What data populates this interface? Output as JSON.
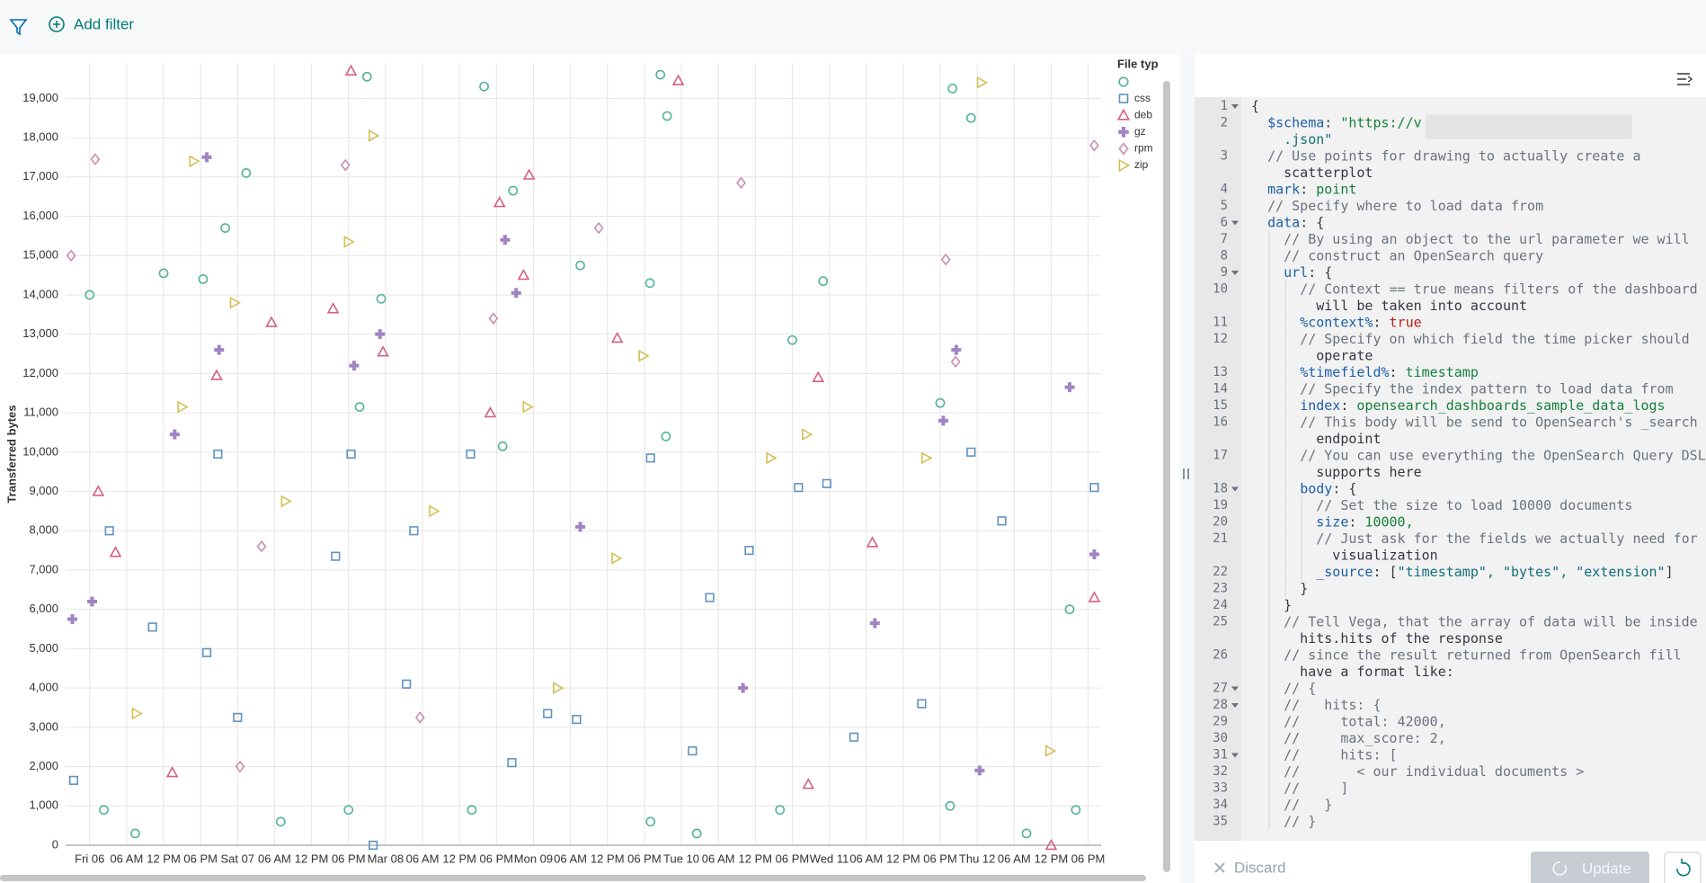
{
  "toolbar": {
    "add_filter": "Add filter"
  },
  "chart_data": {
    "type": "scatter",
    "y_label": "Transferred bytes",
    "legend_title": "File typ",
    "grid": true,
    "xlim": [
      -3.9,
      164.1
    ],
    "xticks": [
      {
        "value": 0,
        "label": "Fri 06"
      },
      {
        "value": 6,
        "label": "06 AM"
      },
      {
        "value": 12,
        "label": "12 PM"
      },
      {
        "value": 18,
        "label": "06 PM"
      },
      {
        "value": 24,
        "label": "Sat 07"
      },
      {
        "value": 30,
        "label": "06 AM"
      },
      {
        "value": 36,
        "label": "12 PM"
      },
      {
        "value": 42,
        "label": "06 PM"
      },
      {
        "value": 48,
        "label": "Mar 08"
      },
      {
        "value": 54,
        "label": "06 AM"
      },
      {
        "value": 60,
        "label": "12 PM"
      },
      {
        "value": 66,
        "label": "06 PM"
      },
      {
        "value": 72,
        "label": "Mon 09"
      },
      {
        "value": 78,
        "label": "06 AM"
      },
      {
        "value": 84,
        "label": "12 PM"
      },
      {
        "value": 90,
        "label": "06 PM"
      },
      {
        "value": 96,
        "label": "Tue 10"
      },
      {
        "value": 102,
        "label": "06 AM"
      },
      {
        "value": 108,
        "label": "12 PM"
      },
      {
        "value": 114,
        "label": "06 PM"
      },
      {
        "value": 120,
        "label": "Wed 11"
      },
      {
        "value": 126,
        "label": "06 AM"
      },
      {
        "value": 132,
        "label": "12 PM"
      },
      {
        "value": 138,
        "label": "06 PM"
      },
      {
        "value": 144,
        "label": "Thu 12"
      },
      {
        "value": 150,
        "label": "06 AM"
      },
      {
        "value": 156,
        "label": "12 PM"
      },
      {
        "value": 162,
        "label": "06 PM"
      }
    ],
    "ylim": [
      0,
      19900
    ],
    "yticks": [
      0,
      {
        "value": 1000,
        "label": "1,000"
      },
      {
        "value": 2000,
        "label": "2,000"
      },
      {
        "value": 3000,
        "label": "3,000"
      },
      {
        "value": 4000,
        "label": "4,000"
      },
      {
        "value": 5000,
        "label": "5,000"
      },
      {
        "value": 6000,
        "label": "6,000"
      },
      {
        "value": 7000,
        "label": "7,000"
      },
      {
        "value": 8000,
        "label": "8,000"
      },
      {
        "value": 9000,
        "label": "9,000"
      },
      {
        "value": 10000,
        "label": "10,000"
      },
      {
        "value": 11000,
        "label": "11,000"
      },
      {
        "value": 12000,
        "label": "12,000"
      },
      {
        "value": 13000,
        "label": "13,000"
      },
      {
        "value": 14000,
        "label": "14,000"
      },
      {
        "value": 15000,
        "label": "15,000"
      },
      {
        "value": 16000,
        "label": "16,000"
      },
      {
        "value": 17000,
        "label": "17,000"
      },
      {
        "value": 18000,
        "label": "18,000"
      },
      {
        "value": 19000,
        "label": "19,000"
      }
    ],
    "series": [
      {
        "shape": "circle",
        "color": "#54b399",
        "x": [
          0,
          12,
          18.4,
          25.4,
          22,
          45,
          47.3,
          64,
          68.7,
          79.6,
          92.6,
          93.7,
          90.9,
          114,
          119,
          140,
          143,
          138,
          159,
          43.8,
          67,
          93.5,
          2.3,
          7.4,
          31,
          42,
          62,
          91,
          98.5,
          112,
          139.6,
          152,
          160
        ],
        "values": [
          14000,
          14550,
          14400,
          17100,
          15700,
          19550,
          13900,
          19300,
          16650,
          14750,
          19600,
          18550,
          14300,
          12850,
          14350,
          19250,
          18500,
          11250,
          6000,
          11150,
          10150,
          10400,
          900,
          300,
          600,
          900,
          900,
          600,
          300,
          900,
          1000,
          300,
          900
        ]
      },
      {
        "name": "css",
        "shape": "square",
        "color": "#6092c0",
        "x": [
          -2.6,
          3.2,
          10.2,
          20.8,
          19,
          24,
          39.9,
          42.4,
          46,
          51.4,
          52.6,
          61.8,
          68.5,
          74.3,
          79,
          91,
          97.8,
          100.6,
          107,
          115,
          119.6,
          124,
          135,
          143,
          148,
          163
        ],
        "values": [
          1650,
          8000,
          5550,
          9950,
          4900,
          3250,
          7350,
          9950,
          0,
          4100,
          8000,
          9950,
          2100,
          3350,
          3200,
          9850,
          2400,
          6300,
          7500,
          9100,
          9200,
          2750,
          3600,
          10000,
          8250,
          9100
        ]
      },
      {
        "name": "deb",
        "shape": "triangle",
        "color": "#d36086",
        "x": [
          1.4,
          4.2,
          29.5,
          20.6,
          39.5,
          42.4,
          47.6,
          66.5,
          71.3,
          70.4,
          65,
          85.6,
          118.2,
          127,
          163,
          95.5,
          116.6,
          156,
          13.4
        ],
        "values": [
          9000,
          7450,
          13300,
          11950,
          13650,
          19700,
          12550,
          16350,
          17050,
          14500,
          11000,
          12900,
          11900,
          7700,
          6300,
          19450,
          1550,
          0,
          1850
        ]
      },
      {
        "name": "gz",
        "shape": "plus",
        "color": "#9170b8",
        "x": [
          -2.8,
          0.4,
          13.8,
          19,
          21,
          42.9,
          47.1,
          67.4,
          69.2,
          79.6,
          106,
          127.4,
          140.6,
          138.5,
          159,
          144.4,
          163
        ],
        "values": [
          5750,
          6200,
          10450,
          17500,
          12600,
          12200,
          13000,
          15400,
          14050,
          8100,
          4000,
          5650,
          12600,
          10800,
          11650,
          1900,
          7400
        ]
      },
      {
        "name": "rpm",
        "shape": "diamond",
        "color": "#ca8eae",
        "x": [
          -3,
          0.9,
          41.5,
          65.5,
          82.6,
          105.7,
          138.9,
          140.5,
          163,
          53.6,
          27.9,
          24.4
        ],
        "values": [
          15000,
          17450,
          17300,
          13400,
          15700,
          16850,
          14900,
          12300,
          17800,
          3250,
          7600,
          2000
        ]
      },
      {
        "name": "zip",
        "shape": "triangle-right",
        "color": "#d6bf57",
        "x": [
          16.9,
          15,
          23.5,
          46,
          42,
          71,
          89.8,
          85.4,
          110.5,
          116.3,
          135.7,
          144.7,
          155.8,
          55.8,
          75.9,
          7.6,
          31.8
        ],
        "values": [
          17400,
          11150,
          13800,
          18050,
          15350,
          11150,
          12450,
          7300,
          9850,
          10450,
          9850,
          19400,
          2400,
          8500,
          4000,
          3350,
          8750
        ]
      }
    ]
  },
  "editor": {
    "lines": [
      {
        "number": "1",
        "code": "{",
        "fold": true
      },
      {
        "number": "2",
        "code": "  $schema: \"https://v",
        "wrap": ".json\""
      },
      {
        "number": "3",
        "code": "  // Use points for drawing to actually create a",
        "wrap": "scatterplot"
      },
      {
        "number": "4",
        "code": "  mark: point"
      },
      {
        "number": "5",
        "code": "  // Specify where to load data from"
      },
      {
        "number": "6",
        "code": "  data: {",
        "fold": true
      },
      {
        "number": "7",
        "code": "    // By using an object to the url parameter we will"
      },
      {
        "number": "8",
        "code": "    // construct an OpenSearch query"
      },
      {
        "number": "9",
        "code": "    url: {",
        "fold": true
      },
      {
        "number": "10",
        "code": "      // Context == true means filters of the dashboard",
        "wrap": "will be taken into account"
      },
      {
        "number": "11",
        "code": "      %context%: true"
      },
      {
        "number": "12",
        "code": "      // Specify on which field the time picker should",
        "wrap": "operate"
      },
      {
        "number": "13",
        "code": "      %timefield%: timestamp"
      },
      {
        "number": "14",
        "code": "      // Specify the index pattern to load data from"
      },
      {
        "number": "15",
        "code": "      index: opensearch_dashboards_sample_data_logs"
      },
      {
        "number": "16",
        "code": "      // This body will be send to OpenSearch's _search",
        "wrap": "endpoint"
      },
      {
        "number": "17",
        "code": "      // You can use everything the OpenSearch Query DSL",
        "wrap": "supports here"
      },
      {
        "number": "18",
        "code": "      body: {",
        "fold": true
      },
      {
        "number": "19",
        "code": "        // Set the size to load 10000 documents"
      },
      {
        "number": "20",
        "code": "        size: 10000,"
      },
      {
        "number": "21",
        "code": "        // Just ask for the fields we actually need for",
        "wrap": "visualization"
      },
      {
        "number": "22",
        "code": "        _source: [\"timestamp\", \"bytes\", \"extension\"]"
      },
      {
        "number": "23",
        "code": "      }"
      },
      {
        "number": "24",
        "code": "    }"
      },
      {
        "number": "25",
        "code": "    // Tell Vega, that the array of data will be inside",
        "wrap": "hits.hits of the response"
      },
      {
        "number": "26",
        "code": "    // since the result returned from OpenSearch fill",
        "wrap": "have a format like:"
      },
      {
        "number": "27",
        "code": "    // {",
        "fold": true
      },
      {
        "number": "28",
        "code": "    //   hits: {",
        "fold": true
      },
      {
        "number": "29",
        "code": "    //     total: 42000,"
      },
      {
        "number": "30",
        "code": "    //     max_score: 2,"
      },
      {
        "number": "31",
        "code": "    //     hits: [",
        "fold": true
      },
      {
        "number": "32",
        "code": "    //       < our individual documents >"
      },
      {
        "number": "33",
        "code": "    //     ]"
      },
      {
        "number": "34",
        "code": "    //   }"
      },
      {
        "number": "35",
        "code": "    // }"
      }
    ]
  },
  "buttons": {
    "discard": "Discard",
    "update": "Update"
  }
}
